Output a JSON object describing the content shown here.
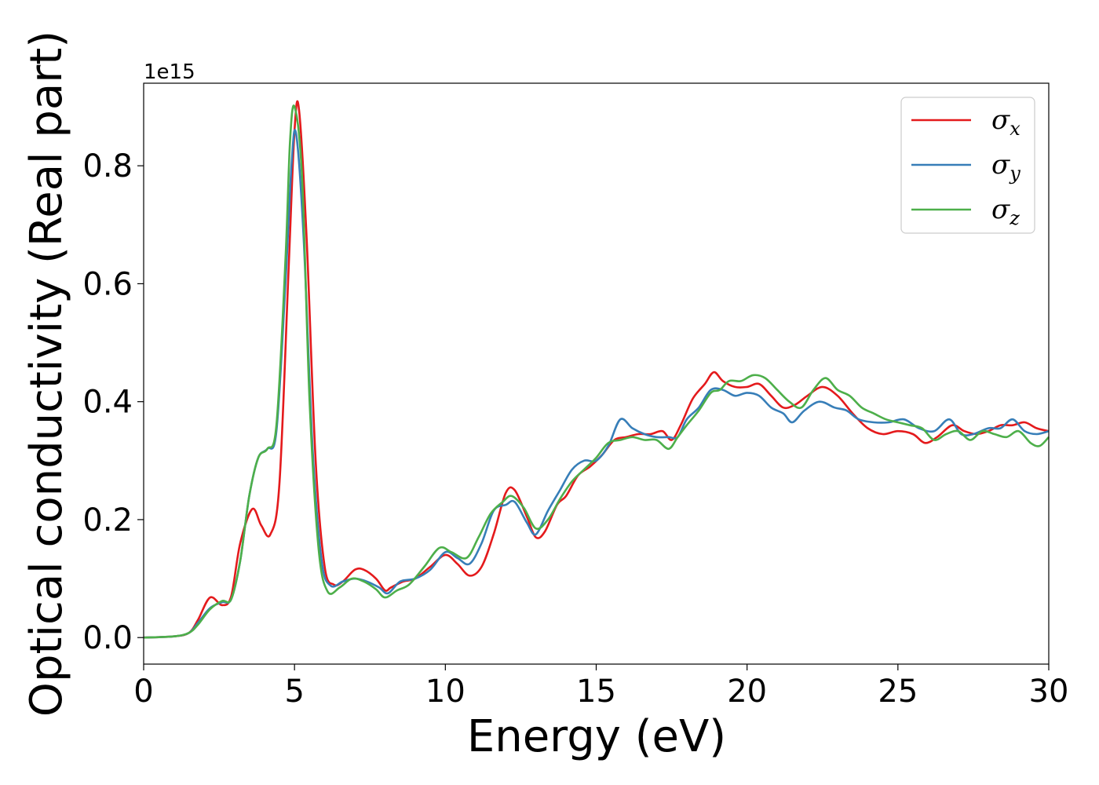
{
  "chart_data": {
    "type": "line",
    "title": "",
    "xlabel": "Energy (eV)",
    "ylabel": "Optical conductivity (Real part)",
    "y_offset_label": "1e15",
    "y_scale": 1000000000000000.0,
    "xlim": [
      0,
      30
    ],
    "ylim": [
      -0.045,
      0.94
    ],
    "xticks": [
      0,
      5,
      10,
      15,
      20,
      25,
      30
    ],
    "xtick_labels": [
      "0",
      "5",
      "10",
      "15",
      "20",
      "25",
      "30"
    ],
    "yticks": [
      0.0,
      0.2,
      0.4,
      0.6,
      0.8
    ],
    "ytick_labels": [
      "0.0",
      "0.2",
      "0.4",
      "0.6",
      "0.8"
    ],
    "grid": false,
    "legend": "top-right",
    "series": [
      {
        "name": "σx",
        "legend_symbol": "σ",
        "legend_subscript": "x",
        "color": "#e41a1c",
        "x": [
          0,
          1.0,
          1.5,
          1.8,
          2.2,
          2.6,
          2.9,
          3.2,
          3.6,
          3.9,
          4.2,
          4.5,
          4.8,
          5.0,
          5.15,
          5.4,
          5.7,
          6.0,
          6.3,
          6.6,
          7.0,
          7.3,
          7.7,
          8.0,
          8.2,
          8.6,
          9.0,
          9.5,
          10.0,
          10.4,
          10.8,
          11.2,
          11.6,
          12.0,
          12.3,
          12.7,
          13.0,
          13.3,
          13.7,
          14.0,
          14.4,
          14.8,
          15.2,
          15.6,
          16.0,
          16.4,
          16.8,
          17.2,
          17.5,
          17.8,
          18.2,
          18.6,
          18.9,
          19.2,
          19.6,
          20.0,
          20.4,
          20.8,
          21.2,
          21.6,
          22.0,
          22.5,
          23.0,
          23.5,
          24.0,
          24.5,
          25.0,
          25.5,
          25.9,
          26.3,
          26.8,
          27.2,
          27.6,
          28.0,
          28.4,
          28.8,
          29.2,
          29.6,
          30.0
        ],
        "values": [
          0.0,
          0.002,
          0.008,
          0.03,
          0.068,
          0.055,
          0.07,
          0.16,
          0.218,
          0.19,
          0.175,
          0.26,
          0.62,
          0.86,
          0.895,
          0.68,
          0.3,
          0.12,
          0.09,
          0.095,
          0.115,
          0.115,
          0.1,
          0.08,
          0.085,
          0.095,
          0.1,
          0.12,
          0.14,
          0.125,
          0.105,
          0.12,
          0.175,
          0.245,
          0.25,
          0.205,
          0.17,
          0.18,
          0.225,
          0.24,
          0.275,
          0.29,
          0.31,
          0.335,
          0.34,
          0.345,
          0.345,
          0.35,
          0.335,
          0.36,
          0.405,
          0.43,
          0.45,
          0.435,
          0.425,
          0.425,
          0.43,
          0.41,
          0.39,
          0.395,
          0.41,
          0.425,
          0.41,
          0.38,
          0.355,
          0.345,
          0.35,
          0.345,
          0.33,
          0.34,
          0.36,
          0.35,
          0.345,
          0.35,
          0.36,
          0.36,
          0.365,
          0.355,
          0.35
        ]
      },
      {
        "name": "σy",
        "legend_symbol": "σ",
        "legend_subscript": "y",
        "color": "#377eb8",
        "x": [
          0,
          1.0,
          1.5,
          1.8,
          2.2,
          2.6,
          2.9,
          3.2,
          3.5,
          3.8,
          4.1,
          4.4,
          4.7,
          4.9,
          5.05,
          5.3,
          5.6,
          5.9,
          6.2,
          6.6,
          7.0,
          7.4,
          7.8,
          8.1,
          8.5,
          9.0,
          9.5,
          10.0,
          10.4,
          10.8,
          11.2,
          11.6,
          12.0,
          12.3,
          12.7,
          13.0,
          13.4,
          13.8,
          14.2,
          14.6,
          15.0,
          15.4,
          15.8,
          16.2,
          16.6,
          17.0,
          17.4,
          17.7,
          18.0,
          18.4,
          18.8,
          19.2,
          19.6,
          20.0,
          20.4,
          20.8,
          21.2,
          21.5,
          21.9,
          22.4,
          22.9,
          23.3,
          23.7,
          24.2,
          24.7,
          25.2,
          25.7,
          26.2,
          26.7,
          27.1,
          27.5,
          28.0,
          28.4,
          28.8,
          29.2,
          29.6,
          30.0
        ],
        "values": [
          0.0,
          0.002,
          0.008,
          0.025,
          0.05,
          0.06,
          0.065,
          0.13,
          0.24,
          0.305,
          0.32,
          0.35,
          0.6,
          0.8,
          0.855,
          0.68,
          0.32,
          0.13,
          0.088,
          0.095,
          0.1,
          0.095,
          0.085,
          0.075,
          0.095,
          0.1,
          0.115,
          0.145,
          0.135,
          0.125,
          0.16,
          0.215,
          0.225,
          0.23,
          0.195,
          0.175,
          0.215,
          0.25,
          0.285,
          0.3,
          0.3,
          0.325,
          0.37,
          0.355,
          0.345,
          0.34,
          0.34,
          0.34,
          0.37,
          0.39,
          0.42,
          0.42,
          0.41,
          0.415,
          0.41,
          0.39,
          0.38,
          0.365,
          0.385,
          0.4,
          0.39,
          0.385,
          0.37,
          0.365,
          0.365,
          0.37,
          0.355,
          0.35,
          0.37,
          0.345,
          0.345,
          0.355,
          0.355,
          0.37,
          0.35,
          0.345,
          0.35
        ]
      },
      {
        "name": "σz",
        "legend_symbol": "σ",
        "legend_subscript": "z",
        "color": "#4daf4a",
        "x": [
          0,
          1.0,
          1.5,
          1.8,
          2.2,
          2.6,
          2.9,
          3.2,
          3.5,
          3.8,
          4.1,
          4.4,
          4.7,
          4.85,
          5.0,
          5.25,
          5.5,
          5.8,
          6.1,
          6.5,
          6.9,
          7.3,
          7.7,
          8.0,
          8.4,
          8.8,
          9.3,
          9.8,
          10.2,
          10.7,
          11.1,
          11.5,
          11.9,
          12.2,
          12.6,
          13.0,
          13.4,
          13.8,
          14.2,
          14.6,
          15.0,
          15.4,
          15.8,
          16.2,
          16.6,
          17.0,
          17.4,
          17.7,
          18.0,
          18.4,
          18.8,
          19.1,
          19.4,
          19.8,
          20.2,
          20.6,
          21.0,
          21.4,
          21.8,
          22.2,
          22.6,
          23.0,
          23.4,
          23.8,
          24.2,
          24.6,
          25.0,
          25.4,
          25.8,
          26.2,
          26.6,
          27.0,
          27.4,
          27.8,
          28.2,
          28.6,
          29.0,
          29.4,
          29.7,
          30.0
        ],
        "values": [
          0.0,
          0.002,
          0.008,
          0.022,
          0.048,
          0.062,
          0.065,
          0.13,
          0.24,
          0.305,
          0.32,
          0.36,
          0.64,
          0.84,
          0.9,
          0.78,
          0.4,
          0.15,
          0.078,
          0.085,
          0.1,
          0.095,
          0.082,
          0.068,
          0.08,
          0.09,
          0.12,
          0.152,
          0.145,
          0.135,
          0.17,
          0.21,
          0.23,
          0.24,
          0.22,
          0.185,
          0.2,
          0.235,
          0.265,
          0.285,
          0.305,
          0.33,
          0.335,
          0.34,
          0.335,
          0.335,
          0.32,
          0.34,
          0.36,
          0.385,
          0.415,
          0.42,
          0.435,
          0.435,
          0.445,
          0.44,
          0.42,
          0.4,
          0.39,
          0.42,
          0.44,
          0.42,
          0.41,
          0.39,
          0.38,
          0.37,
          0.365,
          0.36,
          0.355,
          0.335,
          0.345,
          0.35,
          0.335,
          0.35,
          0.345,
          0.34,
          0.35,
          0.33,
          0.325,
          0.34
        ]
      }
    ]
  }
}
